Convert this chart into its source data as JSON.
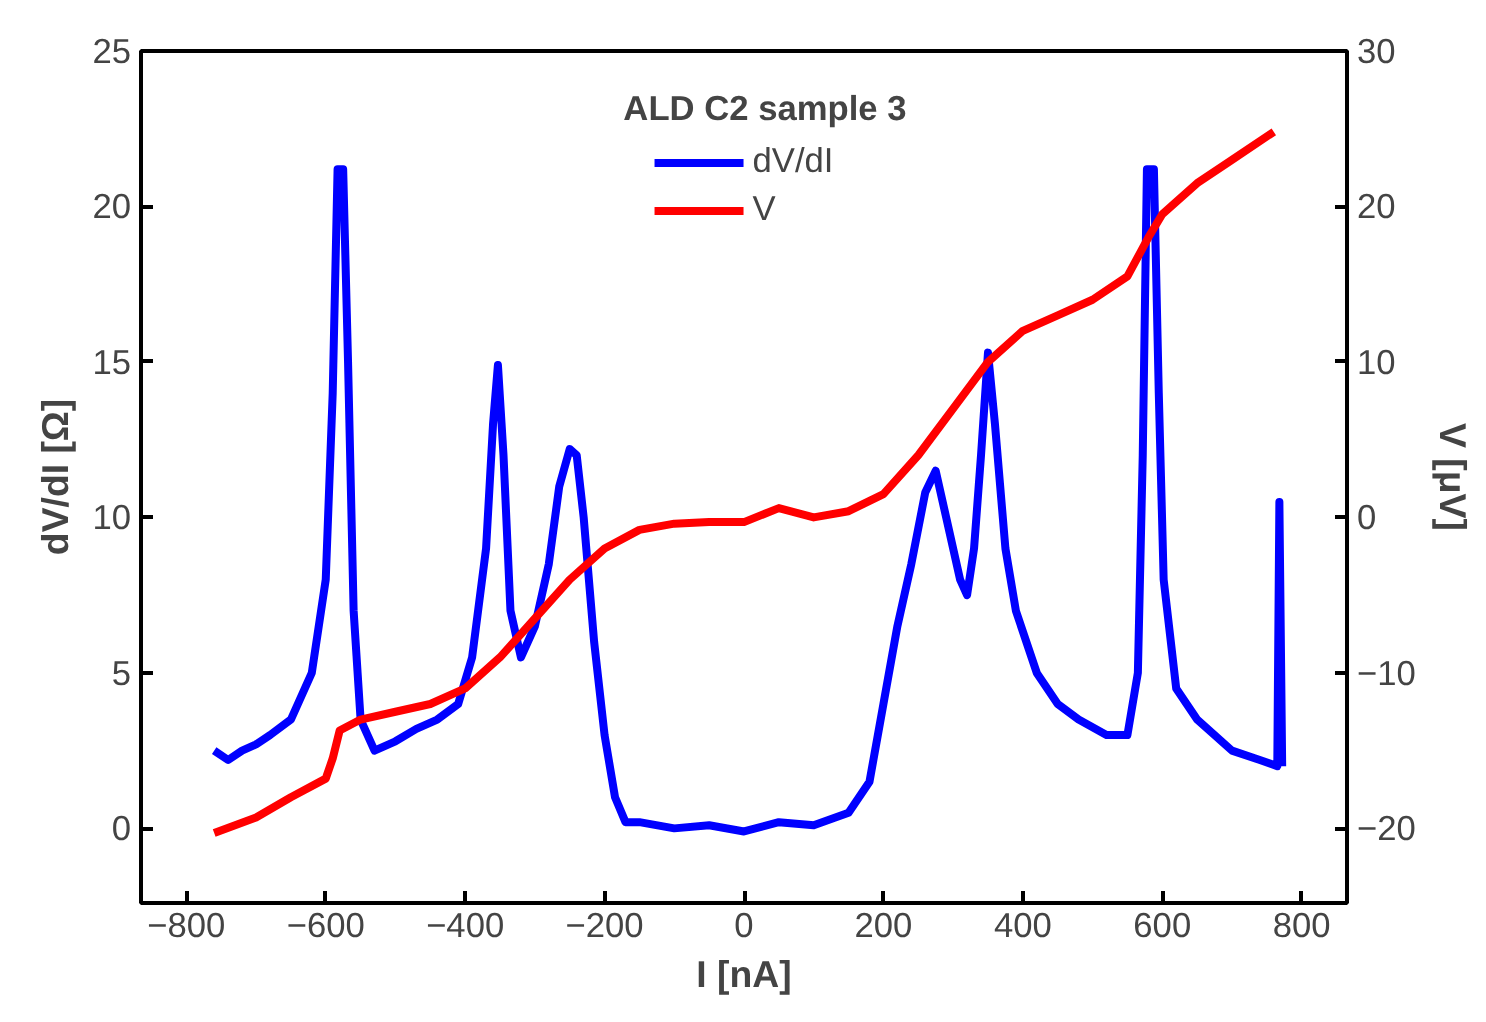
{
  "chart_data": {
    "type": "line",
    "xlabel": "I [nA]",
    "ylabel": "dV/dI [Ω]",
    "y2label": "V [μV]",
    "annotations": [
      "ALD C2 sample 3"
    ],
    "xlim": [
      -865,
      865
    ],
    "xticks": [
      -800,
      -600,
      -400,
      -200,
      0,
      200,
      400,
      600,
      800
    ],
    "ylim": [
      -2.4,
      25
    ],
    "yticks": [
      0,
      5,
      10,
      15,
      20,
      25
    ],
    "y2lim": [
      -24.8,
      30
    ],
    "y2ticks": [
      -20,
      -10,
      0,
      10,
      20,
      30
    ],
    "grid": false,
    "legend": "top",
    "marker": "none",
    "line_style": "solid",
    "series": [
      {
        "name": "dV/dI",
        "color": "#0000ff",
        "x": [
          -760,
          -740,
          -720,
          -700,
          -680,
          -650,
          -620,
          -600,
          -590,
          -583,
          -575,
          -568,
          -560,
          -550,
          -530,
          -500,
          -470,
          -440,
          -410,
          -390,
          -370,
          -360,
          -353,
          -345,
          -335,
          -320,
          -300,
          -280,
          -265,
          -250,
          -240,
          -230,
          -215,
          -200,
          -185,
          -170,
          -150,
          -100,
          -50,
          0,
          50,
          100,
          150,
          180,
          200,
          220,
          240,
          260,
          275,
          290,
          310,
          320,
          330,
          340,
          350,
          360,
          375,
          390,
          420,
          450,
          480,
          520,
          550,
          565,
          572,
          578,
          588,
          595,
          602,
          620,
          650,
          700,
          740,
          765,
          768,
          772
        ],
        "values": [
          2.5,
          2.2,
          2.5,
          2.7,
          3.0,
          3.5,
          5,
          8,
          14,
          21.2,
          21.2,
          15,
          7,
          3.5,
          2.5,
          2.8,
          3.2,
          3.5,
          4,
          5.5,
          9,
          13,
          14.9,
          12,
          7,
          5.5,
          6.5,
          8.5,
          11,
          12.2,
          12,
          10,
          6,
          3,
          1,
          0.2,
          0.2,
          0,
          0.1,
          -0.1,
          0.2,
          0.1,
          0.5,
          1.5,
          4,
          6.5,
          8.5,
          10.8,
          11.5,
          10,
          8,
          7.5,
          9,
          12,
          15.3,
          13,
          9,
          7,
          5,
          4,
          3.5,
          3,
          3,
          5,
          12,
          21.2,
          21.2,
          14,
          8,
          4.5,
          3.5,
          2.5,
          2.2,
          2,
          10.5,
          2
        ]
      },
      {
        "name": "V",
        "color": "#ff0000",
        "axis": "y2",
        "x": [
          -760,
          -700,
          -650,
          -600,
          -590,
          -580,
          -550,
          -500,
          -450,
          -400,
          -350,
          -300,
          -250,
          -200,
          -150,
          -100,
          -50,
          0,
          50,
          100,
          150,
          200,
          250,
          300,
          350,
          400,
          450,
          500,
          550,
          580,
          600,
          650,
          700,
          760
        ],
        "values": [
          -20.3,
          -19.3,
          -18,
          -16.8,
          -15.5,
          -13.7,
          -13,
          -12.5,
          -12,
          -11,
          -9,
          -6.5,
          -4,
          -2,
          -0.8,
          -0.4,
          -0.3,
          -0.3,
          0.6,
          0,
          0.4,
          1.5,
          4,
          7,
          10,
          12,
          13,
          14,
          15.5,
          18,
          19.5,
          21.5,
          23,
          24.8
        ]
      }
    ]
  }
}
